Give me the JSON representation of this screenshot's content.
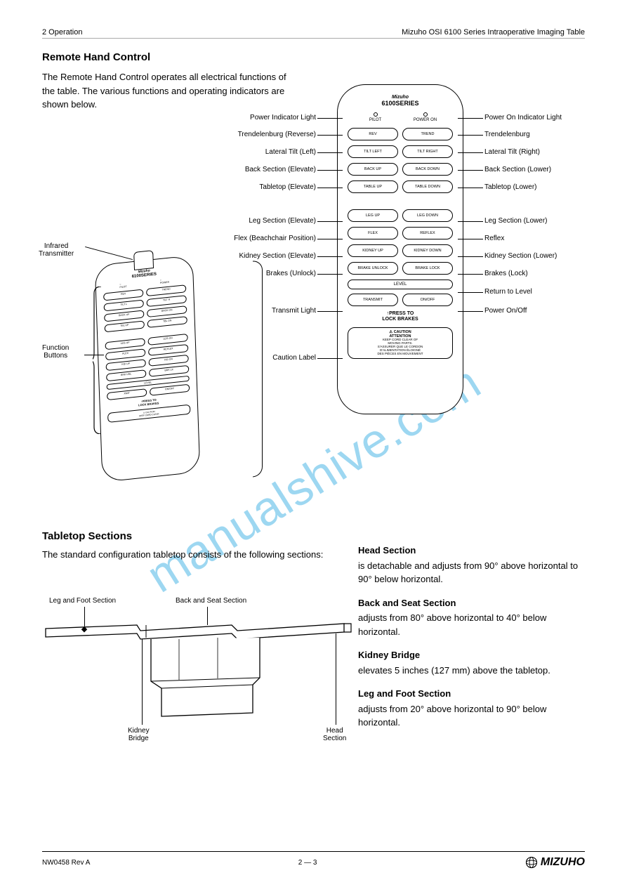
{
  "header": {
    "left": "2 Operation",
    "right": "Mizuho OSI 6100 Series Intraoperative Imaging Table"
  },
  "section_remote": {
    "title": "Remote Hand Control",
    "intro": "The Remote Hand Control operates all electrical functions of the table. The various functions and operating indicators are shown below."
  },
  "section_table": {
    "title": "Tabletop Sections",
    "intro": "The standard configuration tabletop consists of the following sections:"
  },
  "iso_labels": {
    "ir": "Infrared\nTransmitter",
    "btns": "Function\nButtons"
  },
  "panel": {
    "brand": "Mizuho",
    "series": "6100SERIES",
    "led_left": "PILOT",
    "led_right": "POWER ON",
    "buttons": [
      [
        "REV",
        "TREND"
      ],
      [
        "TILT LEFT",
        "TILT RIGHT"
      ],
      [
        "BACK UP",
        "BACK DOWN"
      ],
      [
        "TABLE UP",
        "TABLE DOWN"
      ],
      [
        "LEG UP",
        "LEG DOWN"
      ],
      [
        "FLEX",
        "REFLEX"
      ],
      [
        "KIDNEY UP",
        "KIDNEY DOWN"
      ],
      [
        "BRAKE UNLOCK",
        "BRAKE LOCK"
      ]
    ],
    "level": "LEVEL",
    "onoff_row": [
      "TRANSMIT",
      "ON/OFF"
    ],
    "lock_text": "↑PRESS TO\nLOCK BRAKES",
    "caution_title": "⚠ CAUTION\nATTENTION",
    "caution_body": "KEEP CORD CLEAR OF\nMOVING PARTS.\nS'ASSURER QUE LE CORDON\nD'ALIMENTATION ÉLOIGNÉ\nDES PIÈCES EN MOUVEMENT"
  },
  "panel_labels_left": [
    "Power Indicator Light",
    "Trendelenburg (Reverse)",
    "Lateral Tilt (Left)",
    "Back Section (Elevate)",
    "Tabletop (Elevate)",
    "Leg Section (Elevate)",
    "Flex (Beachchair Position)",
    "Kidney Section (Elevate)",
    "Brakes (Unlock)",
    "Transmit Light",
    "Caution Label"
  ],
  "panel_labels_right": [
    "Power On Indicator Light",
    "Trendelenburg",
    "Lateral Tilt (Right)",
    "Back Section (Lower)",
    "Tabletop (Lower)",
    "Leg Section (Lower)",
    "Reflex",
    "Kidney Section (Lower)",
    "Brakes (Lock)",
    "Return to Level",
    "Power On/Off"
  ],
  "table_labels": {
    "leg": "Leg and Foot Section",
    "back": "Back and Seat Section",
    "kidney": "Kidney\nBridge",
    "head": "Head\nSection"
  },
  "paragraphs": [
    {
      "head": "Head Section",
      "body": "is detachable and adjusts from 90° above horizontal to 90° below horizontal."
    },
    {
      "head": "Back and Seat Section",
      "body": "adjusts from 80° above horizontal to 40° below horizontal."
    },
    {
      "head": "Kidney Bridge",
      "body": "elevates 5 inches (127 mm) above the tabletop."
    },
    {
      "head": "Leg and Foot Section",
      "body": "adjusts from 20° above horizontal to 90° below horizontal."
    }
  ],
  "footer": {
    "left": "NW0458 Rev A",
    "center": "2 — 3",
    "logo": "MIZUHO"
  },
  "watermark": "manualshive.com"
}
